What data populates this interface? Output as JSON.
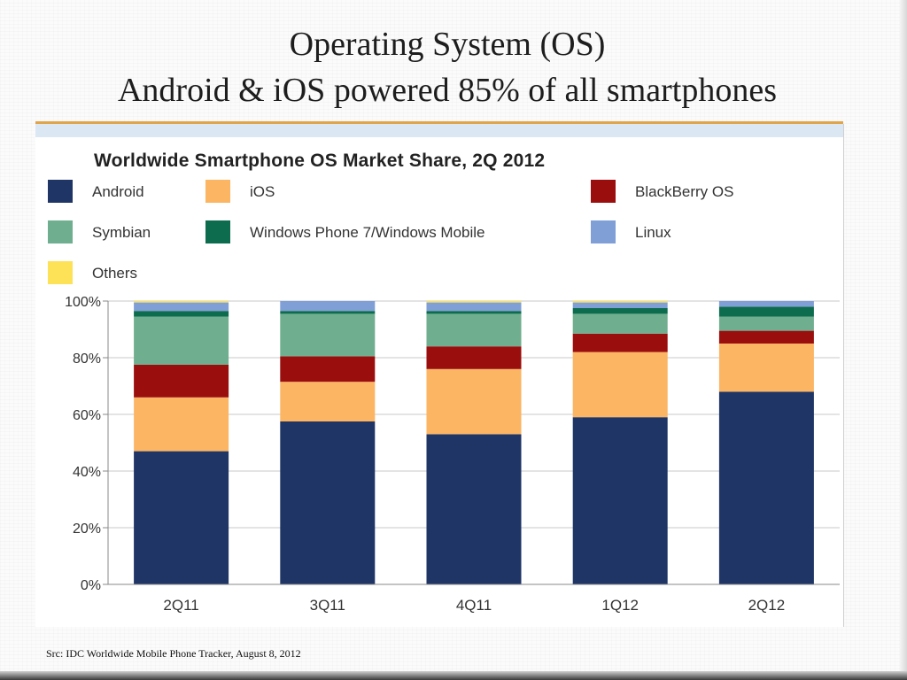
{
  "slide": {
    "title_line1": "Operating System (OS)",
    "title_line2": "Android & iOS powered 85% of all smartphones",
    "source": "Src: IDC Worldwide Mobile Phone Tracker, August 8, 2012",
    "accent_color": "#e0a44a"
  },
  "chart_data": {
    "type": "bar",
    "stacked": true,
    "title": "Worldwide Smartphone OS Market Share, 2Q 2012",
    "categories": [
      "2Q11",
      "3Q11",
      "4Q11",
      "1Q12",
      "2Q12"
    ],
    "y_ticks": [
      "0%",
      "20%",
      "40%",
      "60%",
      "80%",
      "100%"
    ],
    "ylim": [
      0,
      100
    ],
    "unit": "%",
    "grid": true,
    "legend_position": "top",
    "series": [
      {
        "name": "Android",
        "color": "#1f3566",
        "values": [
          47,
          57.5,
          53,
          59,
          68
        ]
      },
      {
        "name": "iOS",
        "color": "#fbb563",
        "values": [
          19,
          14,
          23,
          23,
          17
        ]
      },
      {
        "name": "BlackBerry OS",
        "color": "#9b0e0e",
        "values": [
          11.5,
          9,
          8,
          6.5,
          4.5
        ]
      },
      {
        "name": "Symbian",
        "color": "#6fae8e",
        "values": [
          17,
          15,
          11.5,
          7,
          5
        ]
      },
      {
        "name": "Windows Phone 7/Windows Mobile",
        "color": "#0d6b4e",
        "values": [
          2,
          1,
          1,
          2,
          3.5
        ]
      },
      {
        "name": "Linux",
        "color": "#7f9fd6",
        "values": [
          3,
          3.5,
          3,
          2,
          2
        ]
      },
      {
        "name": "Others",
        "color": "#fde157",
        "values": [
          0.5,
          0,
          0.5,
          0.5,
          0
        ]
      }
    ]
  }
}
